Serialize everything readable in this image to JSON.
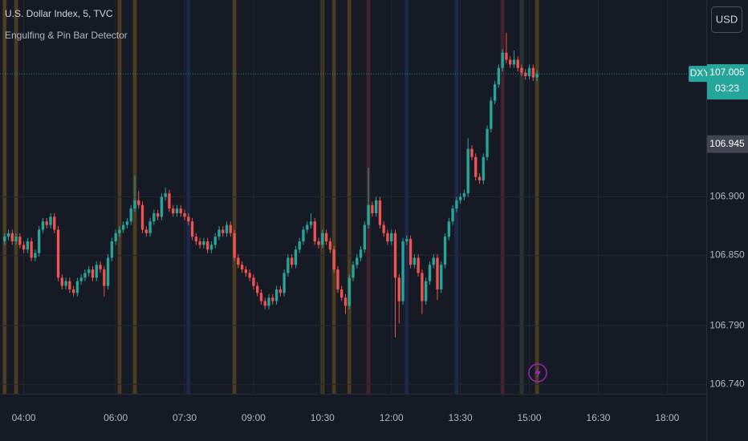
{
  "chart_data": {
    "type": "candlestick",
    "title": "U.S. Dollar Index, 5, TVC",
    "indicator": "Engulfing & Pin Bar Detector",
    "currency": "USD",
    "up_color": "#26a69a",
    "down_color": "#ef5350",
    "grid": true,
    "xlim": [
      209,
      1131
    ],
    "ylim": [
      106.732,
      107.068
    ],
    "xticks": [
      {
        "value": 240,
        "label": "04:00"
      },
      {
        "value": 360,
        "label": "06:00"
      },
      {
        "value": 450,
        "label": "07:30"
      },
      {
        "value": 540,
        "label": "09:00"
      },
      {
        "value": 630,
        "label": "10:30"
      },
      {
        "value": 720,
        "label": "12:00"
      },
      {
        "value": 810,
        "label": "13:30"
      },
      {
        "value": 900,
        "label": "15:00"
      },
      {
        "value": 990,
        "label": "16:30"
      },
      {
        "value": 1080,
        "label": "18:00"
      }
    ],
    "yticks": [
      {
        "value": 106.74,
        "label": "106.740"
      },
      {
        "value": 106.79,
        "label": "106.790"
      },
      {
        "value": 106.85,
        "label": "106.850"
      },
      {
        "value": 106.9,
        "label": "106.900"
      }
    ],
    "last_price": {
      "symbol": "DXY",
      "value": 107.005,
      "label": "107.005",
      "countdown": "03:23"
    },
    "indicator_price": {
      "value": 106.945,
      "label": "106.945"
    },
    "bands": [
      {
        "x": 215,
        "color": "#7a5a1e"
      },
      {
        "x": 230,
        "color": "#7a5a1e"
      },
      {
        "x": 365,
        "color": "#7a5a1e"
      },
      {
        "x": 385,
        "color": "#7a5a1e"
      },
      {
        "x": 455,
        "color": "#24346b"
      },
      {
        "x": 515,
        "color": "#7a5a1e"
      },
      {
        "x": 630,
        "color": "#7a5a1e"
      },
      {
        "x": 645,
        "color": "#7a5a1e"
      },
      {
        "x": 665,
        "color": "#7a5a1e"
      },
      {
        "x": 690,
        "color": "#6b2a33"
      },
      {
        "x": 740,
        "color": "#24346b"
      },
      {
        "x": 805,
        "color": "#24346b"
      },
      {
        "x": 865,
        "color": "#6b2a33"
      },
      {
        "x": 890,
        "color": "#3a4a3a"
      },
      {
        "x": 910,
        "color": "#7a5a1e"
      }
    ],
    "x": [
      215,
      220,
      225,
      230,
      235,
      240,
      245,
      250,
      255,
      260,
      265,
      270,
      275,
      280,
      285,
      290,
      295,
      300,
      305,
      310,
      315,
      320,
      325,
      330,
      335,
      340,
      345,
      350,
      355,
      360,
      365,
      370,
      375,
      380,
      385,
      390,
      395,
      400,
      405,
      410,
      415,
      420,
      425,
      430,
      435,
      440,
      445,
      450,
      455,
      460,
      465,
      470,
      475,
      480,
      485,
      490,
      495,
      500,
      505,
      510,
      515,
      520,
      525,
      530,
      535,
      540,
      545,
      550,
      555,
      560,
      565,
      570,
      575,
      580,
      585,
      590,
      595,
      600,
      605,
      610,
      615,
      620,
      625,
      630,
      635,
      640,
      645,
      650,
      655,
      660,
      665,
      670,
      675,
      680,
      685,
      690,
      695,
      700,
      705,
      710,
      715,
      720,
      725,
      730,
      735,
      740,
      745,
      750,
      755,
      760,
      765,
      770,
      775,
      780,
      785,
      790,
      795,
      800,
      805,
      810,
      815,
      820,
      825,
      830,
      835,
      840,
      845,
      850,
      855,
      860,
      865,
      870,
      875,
      880,
      885,
      890,
      895,
      900,
      905,
      910
    ],
    "candles": [
      [
        106.862,
        106.869,
        106.859,
        106.866
      ],
      [
        106.866,
        106.872,
        106.863,
        106.869
      ],
      [
        106.869,
        106.872,
        106.859,
        106.862
      ],
      [
        106.862,
        106.869,
        106.859,
        106.866
      ],
      [
        106.866,
        106.869,
        106.856,
        106.859
      ],
      [
        106.859,
        106.862,
        106.852,
        106.855
      ],
      [
        106.855,
        106.865,
        106.852,
        106.862
      ],
      [
        106.862,
        106.865,
        106.845,
        106.848
      ],
      [
        106.848,
        106.855,
        106.845,
        106.852
      ],
      [
        106.852,
        106.875,
        106.849,
        106.872
      ],
      [
        106.872,
        106.882,
        106.869,
        106.879
      ],
      [
        106.879,
        106.882,
        106.873,
        106.876
      ],
      [
        106.876,
        106.886,
        106.873,
        106.883
      ],
      [
        106.883,
        106.886,
        106.869,
        106.872
      ],
      [
        106.872,
        106.875,
        106.828,
        106.831
      ],
      [
        106.831,
        106.834,
        106.821,
        106.824
      ],
      [
        106.824,
        106.831,
        106.821,
        106.828
      ],
      [
        106.828,
        106.831,
        106.818,
        106.821
      ],
      [
        106.821,
        106.824,
        106.815,
        106.818
      ],
      [
        106.818,
        106.831,
        106.815,
        106.828
      ],
      [
        106.828,
        106.834,
        106.825,
        106.831
      ],
      [
        106.831,
        106.838,
        106.828,
        106.835
      ],
      [
        106.835,
        106.841,
        106.832,
        106.838
      ],
      [
        106.838,
        106.841,
        106.828,
        106.831
      ],
      [
        106.831,
        106.845,
        106.828,
        106.842
      ],
      [
        106.842,
        106.845,
        106.835,
        106.838
      ],
      [
        106.838,
        106.841,
        106.815,
        106.824
      ],
      [
        106.824,
        106.851,
        106.821,
        106.848
      ],
      [
        106.848,
        106.865,
        106.845,
        106.862
      ],
      [
        106.862,
        106.872,
        106.859,
        106.869
      ],
      [
        106.869,
        106.875,
        106.866,
        106.872
      ],
      [
        106.872,
        106.879,
        106.869,
        106.876
      ],
      [
        106.876,
        106.882,
        106.873,
        106.879
      ],
      [
        106.879,
        106.893,
        106.876,
        106.89
      ],
      [
        106.89,
        106.918,
        106.887,
        106.897
      ],
      [
        106.897,
        106.905,
        106.89,
        106.893
      ],
      [
        106.893,
        106.896,
        106.869,
        106.872
      ],
      [
        106.872,
        106.875,
        106.866,
        106.869
      ],
      [
        106.869,
        106.882,
        106.866,
        106.879
      ],
      [
        106.879,
        106.889,
        106.876,
        106.886
      ],
      [
        106.886,
        106.889,
        106.88,
        106.883
      ],
      [
        106.883,
        106.903,
        106.88,
        106.9
      ],
      [
        106.9,
        106.908,
        106.897,
        106.903
      ],
      [
        106.903,
        106.906,
        106.887,
        106.89
      ],
      [
        106.89,
        106.893,
        106.883,
        106.886
      ],
      [
        106.886,
        106.893,
        106.883,
        106.89
      ],
      [
        106.89,
        106.893,
        106.883,
        106.886
      ],
      [
        106.886,
        106.889,
        106.88,
        106.883
      ],
      [
        106.883,
        106.886,
        106.876,
        106.879
      ],
      [
        106.879,
        106.882,
        106.863,
        106.866
      ],
      [
        106.866,
        106.869,
        106.859,
        106.862
      ],
      [
        106.862,
        106.865,
        106.856,
        106.859
      ],
      [
        106.859,
        106.865,
        106.856,
        106.862
      ],
      [
        106.862,
        106.865,
        106.852,
        106.855
      ],
      [
        106.855,
        106.862,
        106.852,
        106.859
      ],
      [
        106.859,
        106.869,
        106.856,
        106.866
      ],
      [
        106.866,
        106.875,
        106.863,
        106.872
      ],
      [
        106.872,
        106.875,
        106.866,
        106.869
      ],
      [
        106.869,
        106.879,
        106.866,
        106.876
      ],
      [
        106.876,
        106.879,
        106.866,
        106.869
      ],
      [
        106.869,
        106.872,
        106.845,
        106.848
      ],
      [
        106.848,
        106.851,
        106.839,
        106.842
      ],
      [
        106.842,
        106.845,
        106.835,
        106.838
      ],
      [
        106.838,
        106.841,
        106.832,
        106.835
      ],
      [
        106.835,
        106.838,
        106.828,
        106.831
      ],
      [
        106.831,
        106.834,
        106.821,
        106.824
      ],
      [
        106.824,
        106.827,
        106.815,
        106.818
      ],
      [
        106.818,
        106.821,
        106.808,
        106.811
      ],
      [
        106.811,
        106.814,
        106.804,
        106.807
      ],
      [
        106.807,
        106.817,
        106.804,
        106.814
      ],
      [
        106.814,
        106.817,
        106.808,
        106.811
      ],
      [
        106.811,
        106.824,
        106.808,
        106.821
      ],
      [
        106.821,
        106.824,
        106.815,
        106.818
      ],
      [
        106.818,
        106.838,
        106.815,
        106.835
      ],
      [
        106.835,
        106.851,
        106.832,
        106.848
      ],
      [
        106.848,
        106.851,
        106.839,
        106.842
      ],
      [
        106.842,
        106.858,
        106.839,
        106.855
      ],
      [
        106.855,
        106.865,
        106.852,
        106.862
      ],
      [
        106.862,
        106.875,
        106.859,
        106.872
      ],
      [
        106.872,
        106.879,
        106.869,
        106.876
      ],
      [
        106.876,
        106.886,
        106.873,
        106.879
      ],
      [
        106.879,
        106.882,
        106.859,
        106.862
      ],
      [
        106.862,
        106.865,
        106.856,
        106.859
      ],
      [
        106.859,
        106.872,
        106.856,
        106.869
      ],
      [
        106.869,
        106.872,
        106.859,
        106.862
      ],
      [
        106.862,
        106.865,
        106.852,
        106.855
      ],
      [
        106.855,
        106.858,
        106.835,
        106.838
      ],
      [
        106.838,
        106.841,
        106.818,
        106.821
      ],
      [
        106.821,
        106.824,
        106.811,
        106.814
      ],
      [
        106.814,
        106.817,
        106.8,
        106.807
      ],
      [
        106.807,
        106.834,
        106.804,
        106.831
      ],
      [
        106.831,
        106.845,
        106.828,
        106.842
      ],
      [
        106.842,
        106.851,
        106.839,
        106.848
      ],
      [
        106.848,
        106.858,
        106.845,
        106.855
      ],
      [
        106.855,
        106.879,
        106.852,
        106.876
      ],
      [
        106.876,
        106.925,
        106.873,
        106.893
      ],
      [
        106.893,
        106.896,
        106.883,
        106.886
      ],
      [
        106.886,
        106.9,
        106.883,
        106.897
      ],
      [
        106.897,
        106.9,
        106.873,
        106.876
      ],
      [
        106.876,
        106.879,
        106.866,
        106.869
      ],
      [
        106.869,
        106.872,
        106.859,
        106.862
      ],
      [
        106.862,
        106.872,
        106.859,
        106.869
      ],
      [
        106.869,
        106.872,
        106.78,
        106.831
      ],
      [
        106.831,
        106.834,
        106.792,
        106.811
      ],
      [
        106.811,
        106.865,
        106.808,
        106.862
      ],
      [
        106.862,
        106.867,
        106.859,
        106.864
      ],
      [
        106.864,
        106.867,
        106.839,
        106.842
      ],
      [
        106.842,
        106.851,
        106.839,
        106.848
      ],
      [
        106.848,
        106.851,
        106.832,
        106.835
      ],
      [
        106.835,
        106.838,
        106.8,
        106.811
      ],
      [
        106.811,
        106.831,
        106.808,
        106.828
      ],
      [
        106.828,
        106.845,
        106.825,
        106.842
      ],
      [
        106.842,
        106.851,
        106.839,
        106.848
      ],
      [
        106.848,
        106.851,
        106.812,
        106.821
      ],
      [
        106.821,
        106.845,
        106.818,
        106.842
      ],
      [
        106.842,
        106.869,
        106.839,
        106.866
      ],
      [
        106.866,
        106.882,
        106.863,
        106.879
      ],
      [
        106.879,
        106.893,
        106.876,
        106.89
      ],
      [
        106.89,
        106.9,
        106.887,
        106.897
      ],
      [
        106.897,
        106.903,
        106.894,
        106.9
      ],
      [
        106.9,
        106.906,
        106.897,
        106.903
      ],
      [
        106.903,
        106.95,
        106.9,
        106.941
      ],
      [
        106.941,
        106.944,
        106.931,
        106.934
      ],
      [
        106.934,
        106.937,
        106.914,
        106.917
      ],
      [
        106.917,
        106.92,
        106.911,
        106.914
      ],
      [
        106.914,
        106.937,
        106.911,
        106.934
      ],
      [
        106.934,
        106.961,
        106.931,
        106.958
      ],
      [
        106.958,
        106.985,
        106.955,
        106.982
      ],
      [
        106.982,
        106.999,
        106.979,
        106.996
      ],
      [
        106.996,
        107.013,
        106.993,
        107.01
      ],
      [
        107.01,
        107.026,
        107.007,
        107.023
      ],
      [
        107.023,
        107.04,
        107.014,
        107.017
      ],
      [
        107.017,
        107.02,
        107.01,
        107.013
      ],
      [
        107.013,
        107.025,
        107.01,
        107.017
      ],
      [
        107.017,
        107.02,
        107.007,
        107.01
      ],
      [
        107.01,
        107.013,
        107.003,
        107.006
      ],
      [
        107.006,
        107.009,
        107.0,
        107.003
      ],
      [
        107.003,
        107.013,
        107.0,
        107.01
      ],
      [
        107.01,
        107.013,
        106.999,
        107.002
      ],
      [
        107.002,
        107.008,
        106.999,
        107.005
      ]
    ]
  }
}
